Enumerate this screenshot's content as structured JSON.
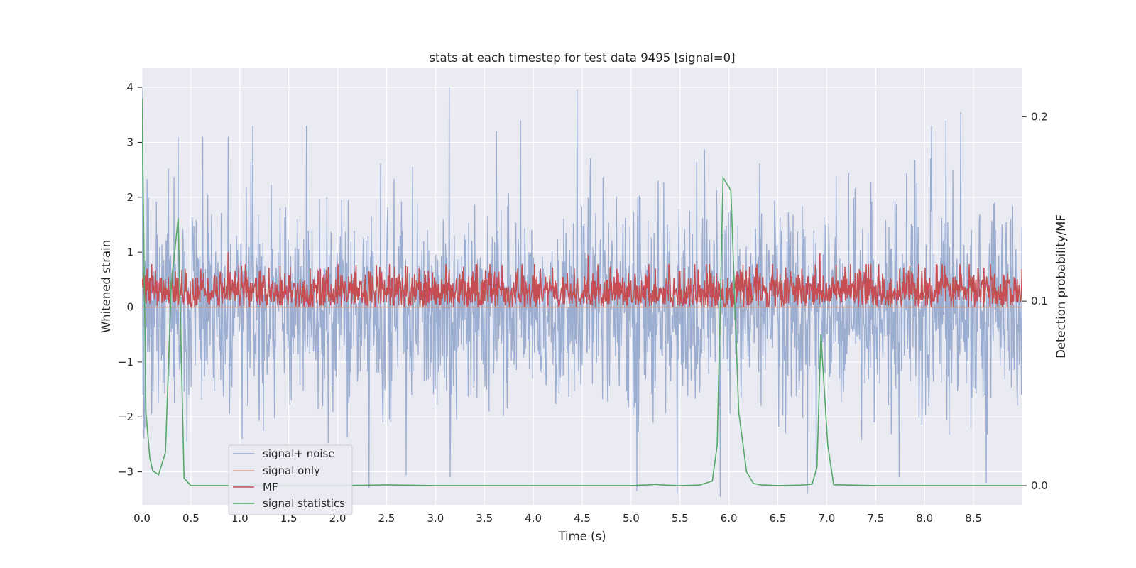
{
  "chart_data": {
    "type": "line",
    "title": "stats at each timestep for test data 9495 [signal=0]",
    "xlabel": "Time (s)",
    "ylabel": "Whitened strain",
    "ylabel_right": "Detection probability/MF",
    "xlim": [
      0.0,
      9.0
    ],
    "ylim": [
      -3.6,
      4.35
    ],
    "ylim_right": [
      -0.0104,
      0.2263
    ],
    "xticks": [
      "0.0",
      "0.5",
      "1.0",
      "1.5",
      "2.0",
      "2.5",
      "3.0",
      "3.5",
      "4.0",
      "4.5",
      "5.0",
      "5.5",
      "6.0",
      "6.5",
      "7.0",
      "7.5",
      "8.0",
      "8.5"
    ],
    "yticks": [
      "4",
      "3",
      "2",
      "1",
      "0",
      "−1",
      "−2",
      "−3"
    ],
    "yticks_right": [
      "0.2",
      "0.1",
      "0.0"
    ],
    "grid": true,
    "legend_position": "lower-left",
    "legend": [
      "signal+ noise",
      "signal only",
      "MF",
      "signal statistics"
    ],
    "colors": {
      "background": "#eaeaf2",
      "grid": "#ffffff",
      "signal_noise": "#4c72b0",
      "signal_only": "#dd8452",
      "mf": "#c44e52",
      "signal_statistics": "#55a868"
    },
    "series": [
      {
        "name": "signal+ noise",
        "axis": "left",
        "description": "dense whitened noise, roughly Gaussian, std about 1",
        "peaks": [
          {
            "x": 0.0,
            "y": 4.0
          },
          {
            "x": 0.37,
            "y": 3.1
          },
          {
            "x": 0.62,
            "y": 3.1
          },
          {
            "x": 0.88,
            "y": 3.1
          },
          {
            "x": 1.13,
            "y": 3.3
          },
          {
            "x": 1.68,
            "y": 3.3
          },
          {
            "x": 3.14,
            "y": 4.0
          },
          {
            "x": 3.87,
            "y": 3.4
          },
          {
            "x": 4.45,
            "y": 3.95
          },
          {
            "x": 5.91,
            "y": 2.7
          },
          {
            "x": 8.07,
            "y": 3.3
          },
          {
            "x": 8.22,
            "y": 3.4
          },
          {
            "x": 8.37,
            "y": 3.55
          }
        ],
        "troughs": [
          {
            "x": 0.03,
            "y": -2.2
          },
          {
            "x": 2.32,
            "y": -3.3
          },
          {
            "x": 3.15,
            "y": -3.1
          },
          {
            "x": 5.06,
            "y": -3.35
          },
          {
            "x": 5.47,
            "y": -3.4
          },
          {
            "x": 5.91,
            "y": -3.45
          },
          {
            "x": 6.8,
            "y": -3.4
          },
          {
            "x": 7.74,
            "y": -3.1
          },
          {
            "x": 8.63,
            "y": -3.2
          }
        ]
      },
      {
        "name": "signal only",
        "axis": "left",
        "x": [
          0.0,
          9.0
        ],
        "y": [
          0.0,
          0.0
        ]
      },
      {
        "name": "MF",
        "axis": "left",
        "description": "matched-filter output, mostly between 0 and 0.7",
        "peaks": [
          {
            "x": 0.88,
            "y": 1.0
          },
          {
            "x": 4.56,
            "y": 0.95
          },
          {
            "x": 6.93,
            "y": 0.98
          }
        ]
      },
      {
        "name": "signal statistics",
        "axis": "right",
        "x": [
          0.0,
          0.04,
          0.08,
          0.11,
          0.17,
          0.24,
          0.3,
          0.37,
          0.43,
          0.5,
          1.0,
          2.0,
          2.5,
          3.0,
          4.0,
          5.0,
          5.17,
          5.25,
          5.33,
          5.5,
          5.7,
          5.83,
          5.88,
          5.94,
          6.02,
          6.1,
          6.18,
          6.25,
          6.33,
          6.5,
          6.75,
          6.85,
          6.9,
          6.94,
          7.01,
          7.07,
          7.5,
          8.0,
          9.0
        ],
        "y": [
          0.21,
          0.04,
          0.015,
          0.008,
          0.006,
          0.018,
          0.11,
          0.145,
          0.004,
          0.0,
          0.0,
          0.0,
          0.0004,
          0.0,
          0.0,
          0.0,
          0.0004,
          0.0007,
          0.0003,
          0.0,
          0.0003,
          0.0025,
          0.022,
          0.167,
          0.16,
          0.04,
          0.0075,
          0.0012,
          0.0004,
          0.0,
          0.0003,
          0.0008,
          0.01,
          0.082,
          0.022,
          0.0005,
          0.0,
          0.0,
          0.0
        ]
      }
    ]
  }
}
